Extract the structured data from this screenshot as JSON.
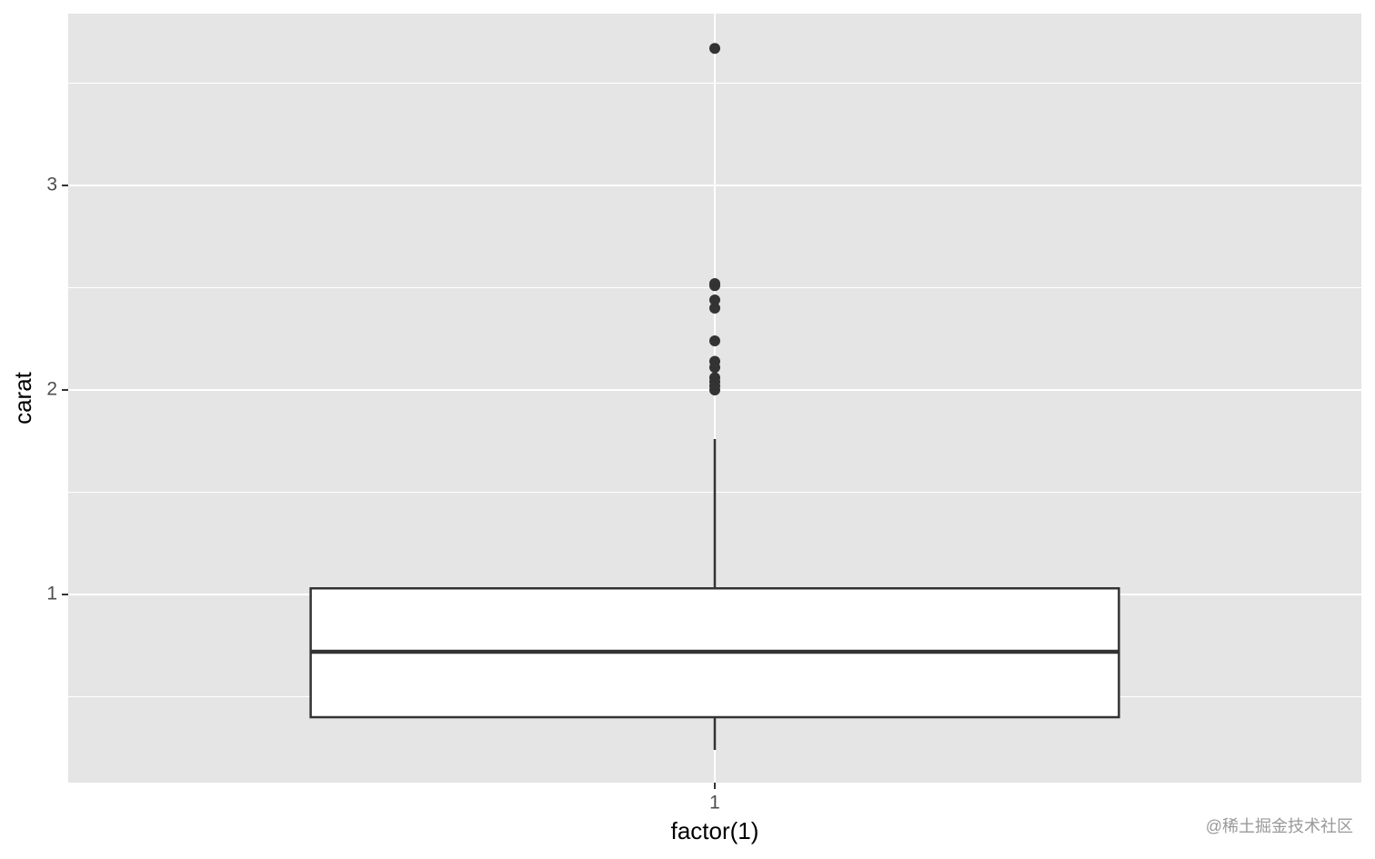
{
  "chart_data": {
    "type": "box",
    "x_label": "factor(1)",
    "y_label": "carat",
    "categories": [
      "1"
    ],
    "boxes": [
      {
        "whisker_low": 0.24,
        "q1": 0.4,
        "median": 0.72,
        "q3": 1.03,
        "whisker_high": 1.76,
        "outliers": [
          3.67,
          2.52,
          2.51,
          2.44,
          2.4,
          2.24,
          2.14,
          2.11,
          2.06,
          2.04,
          2.02,
          2.0
        ]
      }
    ],
    "ylim": [
      0.08,
      3.84
    ],
    "yticks": [
      1,
      2,
      3
    ],
    "yminor": [
      0.5,
      1.5,
      2.5,
      3.5
    ],
    "panel_color": "#e5e5e5",
    "box_fill": "#ffffff",
    "line_color": "#333333",
    "grid": true,
    "watermark": "@稀土掘金技术社区"
  }
}
